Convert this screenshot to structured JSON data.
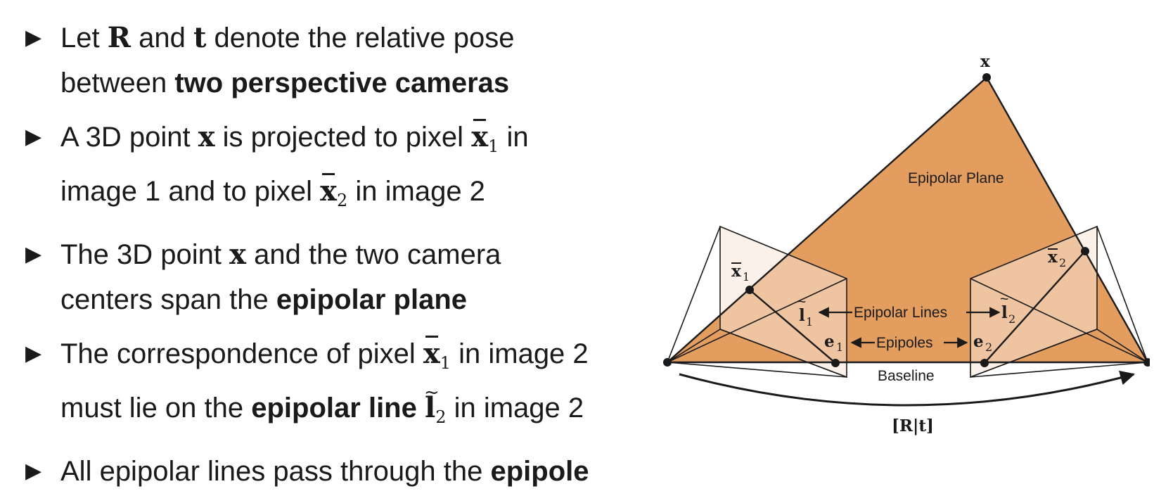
{
  "bullets": [
    {
      "l1_a": "Let ",
      "R": "R",
      "l1_b": " and ",
      "t": "t",
      "l1_c": " denote the relative pose",
      "l2_a": "between ",
      "l2_bold": "two perspective cameras"
    },
    {
      "l1_a": "A 3D point ",
      "x": "x",
      "l1_b": " is projected to pixel ",
      "x1": "x",
      "x1_sub": "1",
      "l1_c": " in",
      "l2_a": "image 1 and to pixel ",
      "x2": "x",
      "x2_sub": "2",
      "l2_b": " in image 2"
    },
    {
      "l1_a": "The 3D point ",
      "x": "x",
      "l1_b": " and the two camera",
      "l2_a": "centers span the ",
      "l2_bold": "epipolar plane"
    },
    {
      "l1_a": "The correspondence of pixel ",
      "x1": "x",
      "x1_sub": "1",
      "l1_b": " in image 2",
      "l2_a": "must lie on the ",
      "l2_bold": "epipolar line",
      "l2_sp": " ",
      "l2": "l",
      "l2_sub": "2",
      "l2_b": " in image 2"
    },
    {
      "l1_a": "All epipolar lines pass through the ",
      "l1_bold": "epipole"
    }
  ],
  "diagram": {
    "point_label": "x",
    "epipolar_plane_label": "Epipolar Plane",
    "x1_label": "x",
    "x1_sub": "1",
    "x2_label": "x",
    "x2_sub": "2",
    "l1_label": "l",
    "l1_sub": "1",
    "l2_label": "l",
    "l2_sub": "2",
    "e1_label": "e",
    "e1_sub": "1",
    "e2_label": "e",
    "e2_sub": "2",
    "epipolar_lines_label": "Epipolar Lines",
    "epipoles_label": "Epipoles",
    "baseline_label": "Baseline",
    "pose_label": "[R|t]",
    "colors": {
      "plane_fill": "#E39E5F",
      "image_plane_fill": "#F8E5D6",
      "line": "#1a1a1a"
    }
  }
}
